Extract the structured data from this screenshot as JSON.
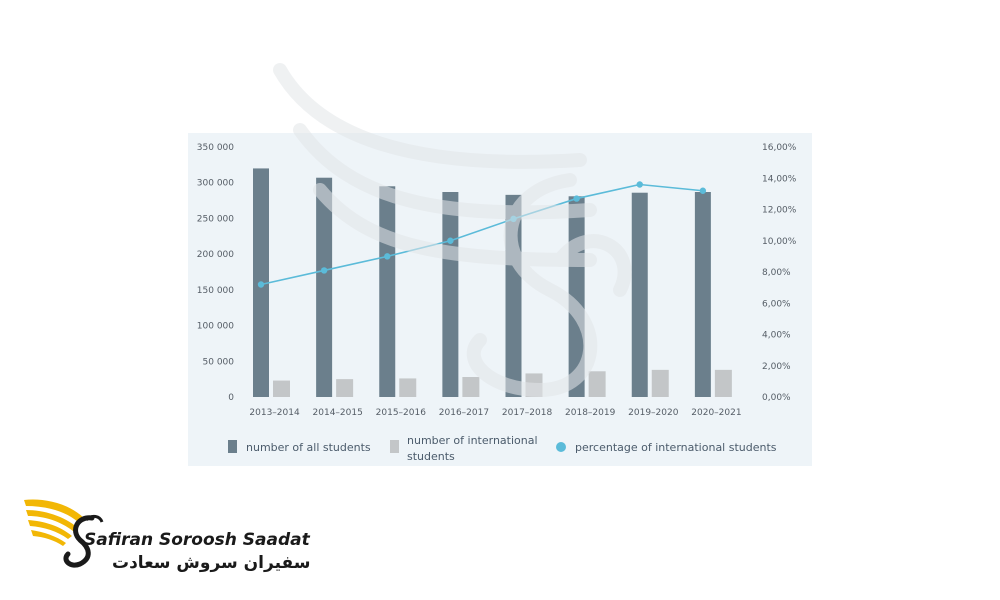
{
  "chart_data": {
    "type": "bar",
    "categories": [
      "2013–2014",
      "2014–2015",
      "2015–2016",
      "2016–2017",
      "2017–2018",
      "2018–2019",
      "2019–2020",
      "2020–2021"
    ],
    "series": [
      {
        "name": "number of all students",
        "kind": "bar",
        "axis": "left",
        "color": "#6b7f8c",
        "values": [
          320000,
          307000,
          295000,
          287000,
          283000,
          281000,
          286000,
          287000
        ]
      },
      {
        "name": "number of international students",
        "kind": "bar",
        "axis": "left",
        "color": "#c3c6c8",
        "values": [
          23000,
          25000,
          26000,
          28000,
          33000,
          36000,
          38000,
          38000
        ]
      },
      {
        "name": "percentage of international students",
        "kind": "line",
        "axis": "right",
        "color": "#5bbbd9",
        "values": [
          7.2,
          8.1,
          9.0,
          10.0,
          11.4,
          12.7,
          13.6,
          13.2
        ]
      }
    ],
    "left_axis": {
      "ylim": [
        0,
        350000
      ],
      "tick_labels": [
        "0",
        "50 000",
        "100 000",
        "150 000",
        "200 000",
        "250 000",
        "300 000",
        "350 000"
      ]
    },
    "right_axis": {
      "ylim": [
        0,
        16
      ],
      "tick_labels": [
        "0,00%",
        "2,00%",
        "4,00%",
        "6,00%",
        "8,00%",
        "10,00%",
        "12,00%",
        "14,00%",
        "16,00%"
      ]
    },
    "legend_placement": "bottom",
    "legend": [
      {
        "label": "number of all students"
      },
      {
        "label_line1": "number of international",
        "label_line2": "students"
      },
      {
        "label": "percentage of international students"
      }
    ]
  },
  "brand": {
    "name_en": "Safiran Soroosh Saadat",
    "name_fa": "سفیران سروش سعادت",
    "colors": {
      "gold": "#f2b705",
      "dark": "#1a1a1a"
    }
  }
}
